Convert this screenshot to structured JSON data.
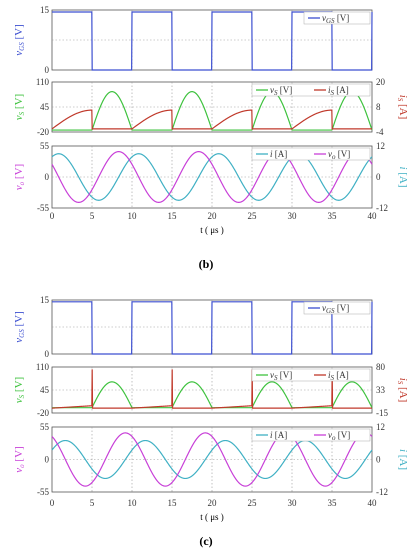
{
  "figure_b": {
    "caption": "(b)",
    "xlabel": "t ( μs )",
    "x_ticks": [
      "0",
      "5",
      "10",
      "15",
      "20",
      "25",
      "30",
      "35",
      "40"
    ]
  },
  "figure_c": {
    "caption": "(c)",
    "xlabel": "t ( μs )",
    "x_ticks": [
      "0",
      "5",
      "10",
      "15",
      "20",
      "25",
      "30",
      "35",
      "40"
    ]
  },
  "chart_data": [
    {
      "type": "line",
      "figure": "b",
      "ylabel": "vGS [V]",
      "xlim": [
        0,
        40
      ],
      "ylim": [
        0,
        15
      ],
      "yticks": [
        "15",
        "0"
      ],
      "grid": true,
      "legend": "top-right",
      "colors": {
        "vGS": "#3c4fd0"
      },
      "series": [
        {
          "name": "vGS [V]",
          "kind": "square",
          "high": 14.5,
          "low": 0,
          "period": 10,
          "high_at_start": true
        }
      ]
    },
    {
      "type": "line",
      "figure": "b",
      "ylabel": "vS [V]",
      "ylabel_right": "iS [A]",
      "xlim": [
        0,
        40
      ],
      "ylim": [
        -20,
        110
      ],
      "ylim_right": [
        -4,
        20
      ],
      "yticks": [
        "110",
        "45",
        "-20"
      ],
      "yticks_right": [
        "20",
        "8",
        "-4"
      ],
      "grid": true,
      "legend": "top-right",
      "colors": {
        "vS": "#3ec23e",
        "iS": "#c0392b"
      },
      "series": [
        {
          "name": "vS [V]",
          "axis": "left",
          "kind": "off_hump",
          "peak": 85,
          "base": -15,
          "period": 10,
          "on_fraction": 0.5
        },
        {
          "name": "iS [A]",
          "axis": "right",
          "kind": "on_ramp",
          "start": -2.5,
          "end": 6.5,
          "period": 10,
          "on_fraction": 0.5
        }
      ]
    },
    {
      "type": "line",
      "figure": "b",
      "ylabel": "vo [V]",
      "ylabel_right": "i [A]",
      "xlim": [
        0,
        40
      ],
      "ylim": [
        -55,
        55
      ],
      "ylim_right": [
        -12,
        12
      ],
      "yticks": [
        "55",
        "0",
        "-55"
      ],
      "yticks_right": [
        "12",
        "0",
        "-12"
      ],
      "grid": true,
      "legend": "top-right",
      "colors": {
        "i": "#3fb0c4",
        "vo": "#c840d8"
      },
      "series": [
        {
          "name": "i [A]",
          "axis": "right",
          "kind": "sine",
          "amplitude": 9,
          "period": 10,
          "phase_deg": 60
        },
        {
          "name": "vo [V]",
          "axis": "left",
          "kind": "sine",
          "amplitude": 45,
          "period": 10,
          "phase_deg": 150
        }
      ]
    },
    {
      "type": "line",
      "figure": "c",
      "ylabel": "vGS [V]",
      "xlim": [
        0,
        40
      ],
      "ylim": [
        0,
        15
      ],
      "yticks": [
        "15",
        "0"
      ],
      "grid": true,
      "legend": "top-right",
      "colors": {
        "vGS": "#3c4fd0"
      },
      "series": [
        {
          "name": "vGS [V]",
          "kind": "square",
          "high": 14.5,
          "low": 0,
          "period": 10,
          "high_at_start": true
        }
      ]
    },
    {
      "type": "line",
      "figure": "c",
      "ylabel": "vS [V]",
      "ylabel_right": "iS [A]",
      "xlim": [
        0,
        40
      ],
      "ylim": [
        -20,
        110
      ],
      "ylim_right": [
        -15,
        80
      ],
      "yticks": [
        "110",
        "45",
        "-20"
      ],
      "yticks_right": [
        "80",
        "33",
        "-15"
      ],
      "grid": true,
      "legend": "top-right",
      "colors": {
        "vS": "#3ec23e",
        "iS": "#c0392b"
      },
      "series": [
        {
          "name": "vS [V]",
          "axis": "left",
          "kind": "off_hump",
          "peak": 68,
          "base": -5,
          "period": 10,
          "on_fraction": 0.5
        },
        {
          "name": "iS [A]",
          "axis": "right",
          "kind": "on_spike",
          "base": -5,
          "ramp_end": 0,
          "spike": 75,
          "period": 10,
          "on_fraction": 0.5
        }
      ]
    },
    {
      "type": "line",
      "figure": "c",
      "ylabel": "vo [V]",
      "ylabel_right": "i [A]",
      "xlim": [
        0,
        40
      ],
      "ylim": [
        -55,
        55
      ],
      "ylim_right": [
        -12,
        12
      ],
      "yticks": [
        "55",
        "0",
        "-55"
      ],
      "yticks_right": [
        "12",
        "0",
        "-12"
      ],
      "grid": true,
      "legend": "top-right",
      "colors": {
        "i": "#3fb0c4",
        "vo": "#c840d8"
      },
      "series": [
        {
          "name": "i [A]",
          "axis": "right",
          "kind": "sine",
          "amplitude": 7,
          "period": 10,
          "phase_deg": 30
        },
        {
          "name": "vo [V]",
          "axis": "left",
          "kind": "sine",
          "amplitude": 45,
          "period": 10,
          "phase_deg": 120
        }
      ]
    }
  ]
}
